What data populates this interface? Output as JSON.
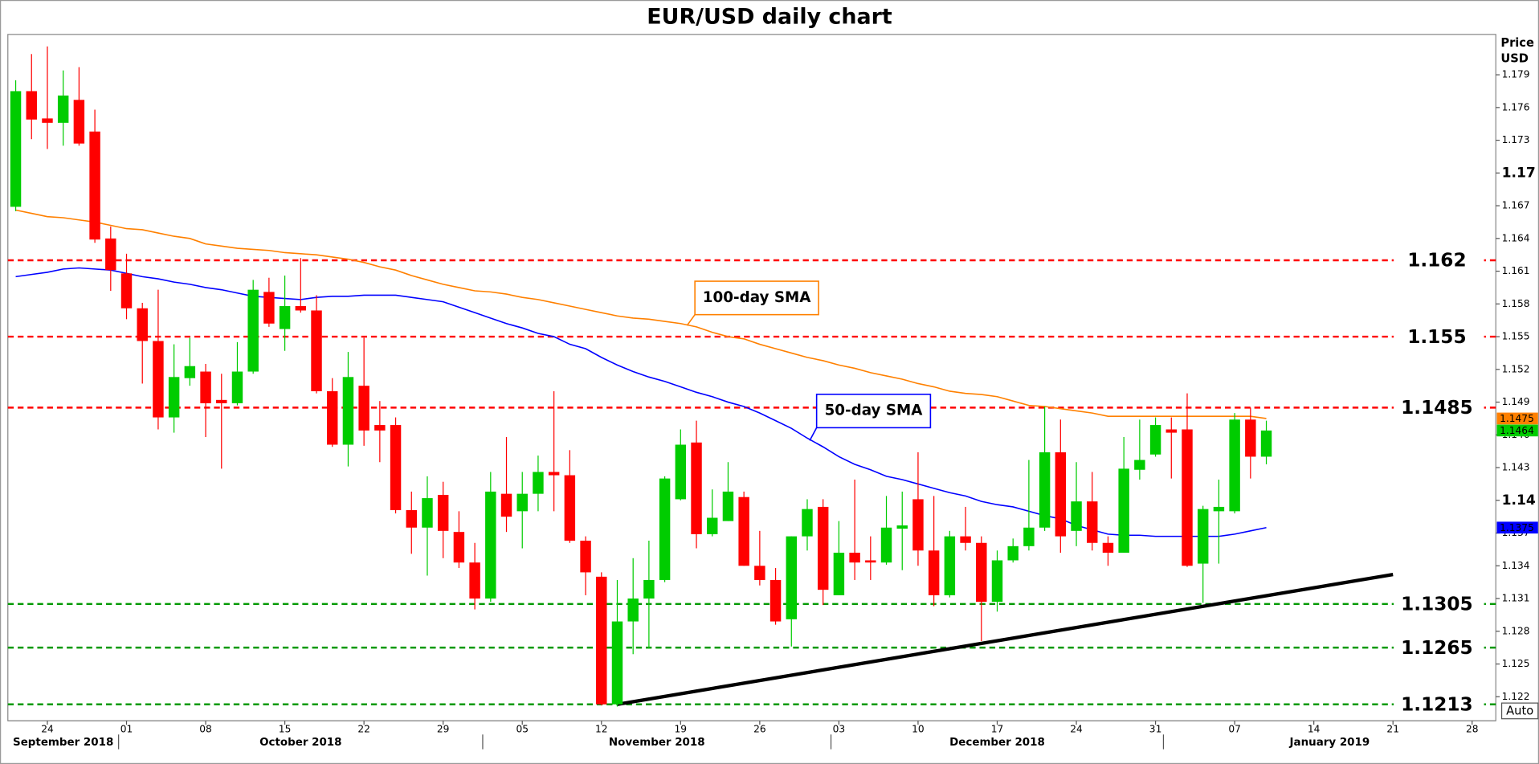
{
  "chart_data": {
    "type": "candlestick",
    "title": "EUR/USD daily chart",
    "ylabel_lines": [
      "Price",
      "USD"
    ],
    "axis_button": "Auto",
    "x": [
      "2018-09-20",
      "2018-09-21",
      "2018-09-24",
      "2018-09-25",
      "2018-09-26",
      "2018-09-27",
      "2018-09-28",
      "2018-10-01",
      "2018-10-02",
      "2018-10-03",
      "2018-10-04",
      "2018-10-05",
      "2018-10-08",
      "2018-10-09",
      "2018-10-10",
      "2018-10-11",
      "2018-10-12",
      "2018-10-15",
      "2018-10-16",
      "2018-10-17",
      "2018-10-18",
      "2018-10-19",
      "2018-10-22",
      "2018-10-23",
      "2018-10-24",
      "2018-10-25",
      "2018-10-26",
      "2018-10-29",
      "2018-10-30",
      "2018-10-31",
      "2018-11-01",
      "2018-11-02",
      "2018-11-05",
      "2018-11-06",
      "2018-11-07",
      "2018-11-08",
      "2018-11-09",
      "2018-11-12",
      "2018-11-13",
      "2018-11-14",
      "2018-11-15",
      "2018-11-16",
      "2018-11-19",
      "2018-11-20",
      "2018-11-21",
      "2018-11-22",
      "2018-11-23",
      "2018-11-26",
      "2018-11-27",
      "2018-11-28",
      "2018-11-29",
      "2018-11-30",
      "2018-12-03",
      "2018-12-04",
      "2018-12-05",
      "2018-12-06",
      "2018-12-07",
      "2018-12-10",
      "2018-12-11",
      "2018-12-12",
      "2018-12-13",
      "2018-12-14",
      "2018-12-17",
      "2018-12-18",
      "2018-12-19",
      "2018-12-20",
      "2018-12-21",
      "2018-12-24",
      "2018-12-25",
      "2018-12-26",
      "2018-12-27",
      "2018-12-28",
      "2018-12-31",
      "2019-01-01",
      "2019-01-02",
      "2019-01-03",
      "2019-01-04",
      "2019-01-07",
      "2019-01-08",
      "2019-01-09"
    ],
    "open": [
      1.1669,
      1.1775,
      1.175,
      1.1746,
      1.1767,
      1.1738,
      1.164,
      1.1608,
      1.1576,
      1.1546,
      1.1476,
      1.1512,
      1.1518,
      1.1492,
      1.1489,
      1.1518,
      1.1591,
      1.1557,
      1.1578,
      1.1574,
      1.15,
      1.1451,
      1.1505,
      1.1469,
      1.1469,
      1.1391,
      1.1375,
      1.1405,
      1.1371,
      1.1343,
      1.131,
      1.1406,
      1.139,
      1.1406,
      1.1426,
      1.1423,
      1.1363,
      1.133,
      1.1213,
      1.1289,
      1.131,
      1.1327,
      1.1401,
      1.1453,
      1.1369,
      1.1381,
      1.1403,
      1.134,
      1.1327,
      1.1291,
      1.1367,
      1.1394,
      1.1313,
      1.1352,
      1.1345,
      1.1343,
      1.1374,
      1.1401,
      1.1354,
      1.1313,
      1.1367,
      1.1361,
      1.1307,
      1.1345,
      1.1358,
      1.1375,
      1.1444,
      1.1372,
      1.1399,
      1.1361,
      1.1352,
      1.1428,
      1.1442,
      1.1465,
      1.1465,
      1.1342,
      1.139,
      1.139,
      1.1474,
      1.144
    ],
    "high": [
      1.1785,
      1.1809,
      1.1816,
      1.1794,
      1.1797,
      1.1758,
      1.1651,
      1.1626,
      1.1581,
      1.1593,
      1.1543,
      1.1549,
      1.1525,
      1.1516,
      1.1545,
      1.1602,
      1.1604,
      1.1606,
      1.1622,
      1.1588,
      1.1512,
      1.1536,
      1.1549,
      1.1491,
      1.1476,
      1.1408,
      1.1422,
      1.1417,
      1.139,
      1.1361,
      1.1426,
      1.1458,
      1.1426,
      1.1441,
      1.15,
      1.1446,
      1.1367,
      1.1334,
      1.1327,
      1.1347,
      1.1363,
      1.1422,
      1.1465,
      1.1473,
      1.141,
      1.1435,
      1.1408,
      1.1372,
      1.1338,
      1.1367,
      1.1401,
      1.1401,
      1.1381,
      1.1419,
      1.1367,
      1.1404,
      1.1408,
      1.1444,
      1.1404,
      1.1372,
      1.1394,
      1.1367,
      1.1354,
      1.1365,
      1.1437,
      1.1486,
      1.1474,
      1.1435,
      1.1426,
      1.1367,
      1.1458,
      1.1474,
      1.1476,
      1.1476,
      1.1498,
      1.1395,
      1.1419,
      1.148,
      1.1485,
      1.1473
    ],
    "low": [
      1.1665,
      1.1731,
      1.1722,
      1.1725,
      1.1725,
      1.1636,
      1.1592,
      1.1566,
      1.1507,
      1.1465,
      1.1462,
      1.1505,
      1.1458,
      1.1429,
      1.1487,
      1.1516,
      1.1559,
      1.1537,
      1.1572,
      1.1498,
      1.1449,
      1.1431,
      1.145,
      1.1435,
      1.1388,
      1.1351,
      1.1331,
      1.1347,
      1.1338,
      1.13,
      1.1307,
      1.1371,
      1.1356,
      1.139,
      1.139,
      1.1361,
      1.1313,
      1.1212,
      1.1211,
      1.1259,
      1.1264,
      1.1325,
      1.14,
      1.1356,
      1.1367,
      1.1381,
      1.134,
      1.1322,
      1.1286,
      1.1266,
      1.1354,
      1.1304,
      1.1313,
      1.1327,
      1.1327,
      1.1341,
      1.1336,
      1.134,
      1.1303,
      1.1311,
      1.1354,
      1.1271,
      1.1298,
      1.1343,
      1.1354,
      1.1372,
      1.1352,
      1.1358,
      1.1354,
      1.134,
      1.1352,
      1.1419,
      1.144,
      1.142,
      1.1339,
      1.1306,
      1.1342,
      1.1388,
      1.142,
      1.1433
    ],
    "close": [
      1.1775,
      1.1749,
      1.1746,
      1.1771,
      1.1727,
      1.1639,
      1.1611,
      1.1576,
      1.1546,
      1.1476,
      1.1513,
      1.1523,
      1.1489,
      1.1489,
      1.1518,
      1.1593,
      1.1562,
      1.1578,
      1.1574,
      1.15,
      1.1451,
      1.1513,
      1.1464,
      1.1464,
      1.1391,
      1.1375,
      1.1402,
      1.1372,
      1.1343,
      1.131,
      1.1408,
      1.1385,
      1.1406,
      1.1426,
      1.1423,
      1.1363,
      1.1334,
      1.1213,
      1.1289,
      1.131,
      1.1327,
      1.142,
      1.1451,
      1.1369,
      1.1384,
      1.1408,
      1.134,
      1.1327,
      1.1289,
      1.1367,
      1.1392,
      1.1318,
      1.1352,
      1.1343,
      1.1343,
      1.1375,
      1.1377,
      1.1354,
      1.1313,
      1.1367,
      1.1361,
      1.1307,
      1.1345,
      1.1358,
      1.1375,
      1.1444,
      1.1367,
      1.1399,
      1.1361,
      1.1352,
      1.1429,
      1.1437,
      1.1469,
      1.1462,
      1.134,
      1.1392,
      1.1394,
      1.1474,
      1.144,
      1.1464
    ],
    "up_color": "#00cc00",
    "down_color": "#ff0000",
    "series": [
      {
        "name": "100-day SMA",
        "color": "#ff8000",
        "values": [
          1.1666,
          1.1663,
          1.166,
          1.1659,
          1.1657,
          1.1655,
          1.1652,
          1.1649,
          1.1648,
          1.1645,
          1.1642,
          1.164,
          1.1635,
          1.1633,
          1.1631,
          1.163,
          1.1629,
          1.1627,
          1.1626,
          1.1625,
          1.1623,
          1.1621,
          1.1618,
          1.1614,
          1.1611,
          1.1606,
          1.1602,
          1.1598,
          1.1595,
          1.1592,
          1.1591,
          1.1589,
          1.1586,
          1.1584,
          1.1581,
          1.1578,
          1.1575,
          1.1572,
          1.1569,
          1.1567,
          1.1566,
          1.1564,
          1.1562,
          1.1559,
          1.1554,
          1.155,
          1.1548,
          1.1543,
          1.1539,
          1.1535,
          1.1531,
          1.1528,
          1.1524,
          1.1521,
          1.1517,
          1.1514,
          1.1511,
          1.1507,
          1.1504,
          1.15,
          1.1498,
          1.1497,
          1.1495,
          1.1491,
          1.1487,
          1.1486,
          1.1484,
          1.1482,
          1.148,
          1.1477,
          1.1477,
          1.1477,
          1.1477,
          1.1477,
          1.1477,
          1.1477,
          1.1477,
          1.1477,
          1.1477,
          1.1475
        ]
      },
      {
        "name": "50-day SMA",
        "color": "#0000ff",
        "values": [
          1.1605,
          1.1607,
          1.1609,
          1.1612,
          1.1613,
          1.1612,
          1.1611,
          1.1608,
          1.1605,
          1.1603,
          1.16,
          1.1598,
          1.1595,
          1.1593,
          1.159,
          1.1587,
          1.1586,
          1.1585,
          1.1584,
          1.1586,
          1.1587,
          1.1587,
          1.1588,
          1.1588,
          1.1588,
          1.1586,
          1.1584,
          1.1582,
          1.1577,
          1.1572,
          1.1567,
          1.1562,
          1.1558,
          1.1553,
          1.155,
          1.1543,
          1.1539,
          1.1531,
          1.1524,
          1.1518,
          1.1513,
          1.1509,
          1.1504,
          1.1499,
          1.1495,
          1.149,
          1.1486,
          1.148,
          1.1473,
          1.1466,
          1.1457,
          1.1449,
          1.144,
          1.1433,
          1.1428,
          1.1422,
          1.1419,
          1.1415,
          1.1411,
          1.1407,
          1.1404,
          1.1399,
          1.1396,
          1.1394,
          1.139,
          1.1386,
          1.1383,
          1.1377,
          1.1373,
          1.1369,
          1.1368,
          1.1368,
          1.1367,
          1.1367,
          1.1367,
          1.1367,
          1.1367,
          1.1369,
          1.1372,
          1.1375
        ]
      }
    ],
    "resistance_levels": [
      1.162,
      1.155,
      1.1485
    ],
    "resistance_color": "#ff0000",
    "support_levels": [
      1.1305,
      1.1265,
      1.1213
    ],
    "support_color": "#009900",
    "trendline": {
      "x": [
        "2018-11-13",
        "2019-01-21"
      ],
      "values": [
        1.1213,
        1.1332
      ],
      "color": "#000000"
    },
    "xlim": [
      "2018-09-20",
      "2019-01-29"
    ],
    "xticks": [
      {
        "value": "2018-09-24",
        "label": "24"
      },
      {
        "value": "2018-10-01",
        "label": "01"
      },
      {
        "value": "2018-10-08",
        "label": "08"
      },
      {
        "value": "2018-10-15",
        "label": "15"
      },
      {
        "value": "2018-10-22",
        "label": "22"
      },
      {
        "value": "2018-10-29",
        "label": "29"
      },
      {
        "value": "2018-11-05",
        "label": "05"
      },
      {
        "value": "2018-11-12",
        "label": "12"
      },
      {
        "value": "2018-11-19",
        "label": "19"
      },
      {
        "value": "2018-11-26",
        "label": "26"
      },
      {
        "value": "2018-12-03",
        "label": "03"
      },
      {
        "value": "2018-12-10",
        "label": "10"
      },
      {
        "value": "2018-12-17",
        "label": "17"
      },
      {
        "value": "2018-12-24",
        "label": "24"
      },
      {
        "value": "2018-12-31",
        "label": "31"
      },
      {
        "value": "2019-01-07",
        "label": "07"
      },
      {
        "value": "2019-01-14",
        "label": "14"
      },
      {
        "value": "2019-01-21",
        "label": "21"
      },
      {
        "value": "2019-01-28",
        "label": "28"
      }
    ],
    "months": [
      {
        "value": "2018-09",
        "label": "September 2018"
      },
      {
        "value": "2018-10",
        "label": "October 2018"
      },
      {
        "value": "2018-11",
        "label": "November 2018"
      },
      {
        "value": "2018-12",
        "label": "December 2018"
      },
      {
        "value": "2019-01",
        "label": "January 2019"
      }
    ],
    "ylim": [
      1.1198,
      1.1827
    ],
    "yticks": [
      1.122,
      1.125,
      1.128,
      1.131,
      1.134,
      1.137,
      1.14,
      1.143,
      1.146,
      1.149,
      1.152,
      1.155,
      1.158,
      1.161,
      1.164,
      1.167,
      1.17,
      1.173,
      1.176,
      1.179
    ],
    "grid": false
  }
}
